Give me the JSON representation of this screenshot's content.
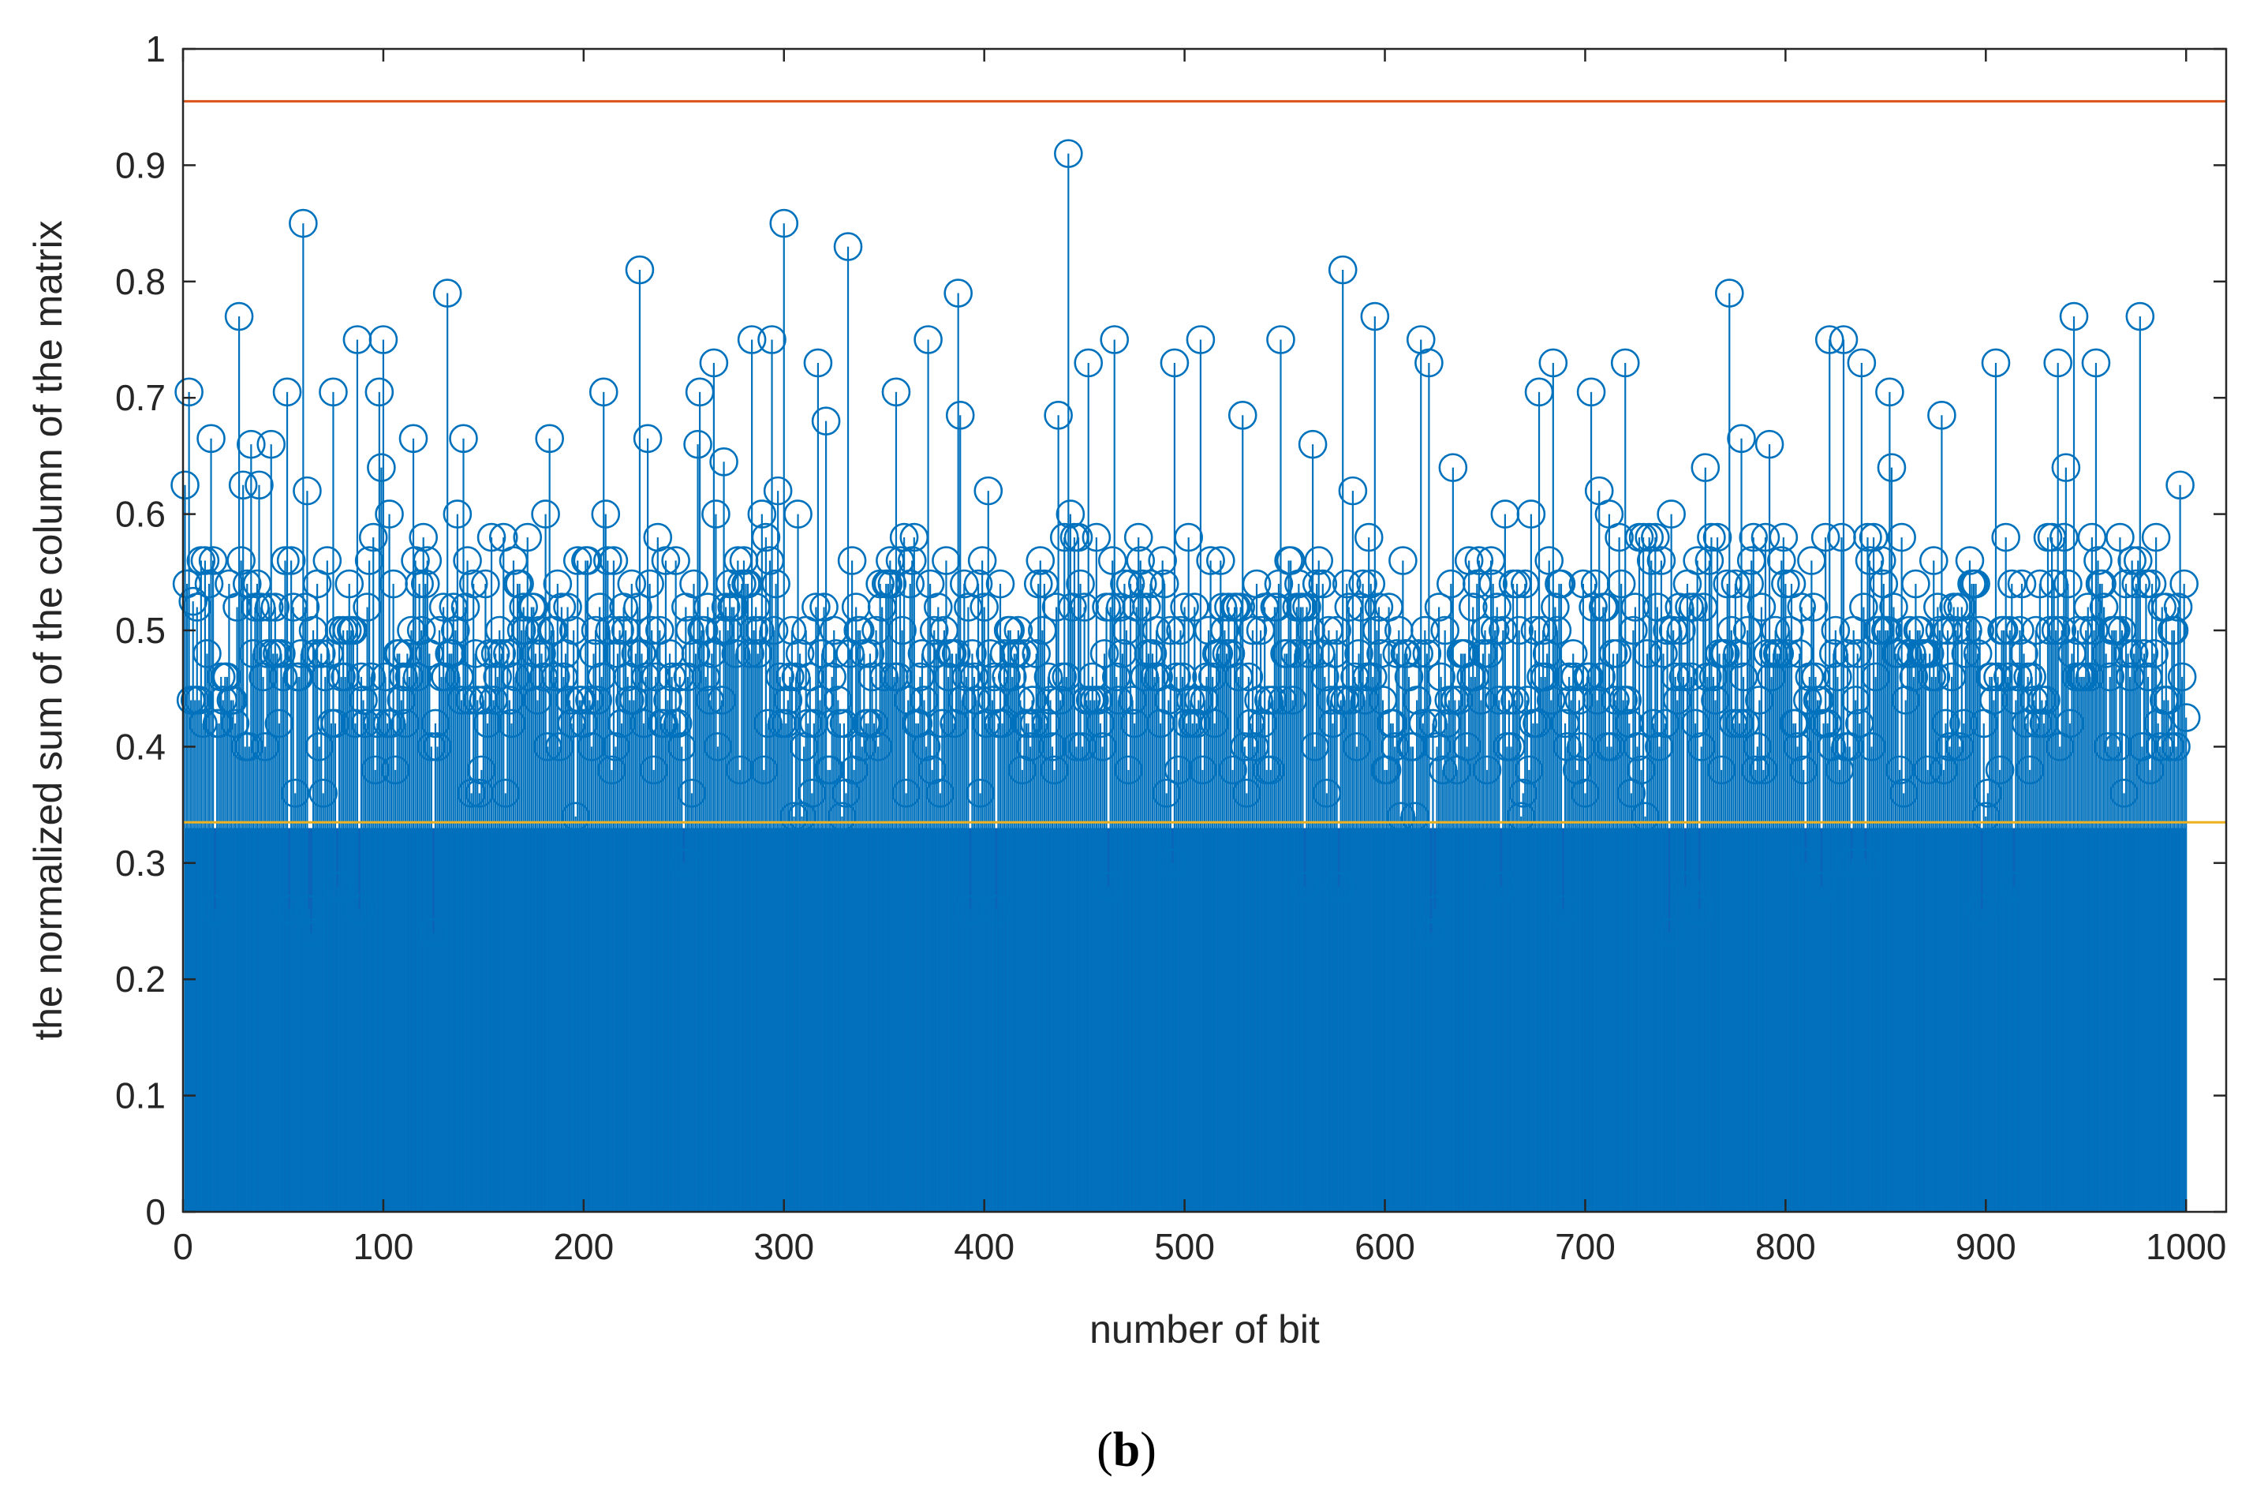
{
  "chart_data": {
    "type": "stem",
    "title": "",
    "xlabel": "number of bit",
    "ylabel": "the normalized sum of the column of the matrix",
    "panel_label": "b",
    "xlim": [
      0,
      1020
    ],
    "ylim": [
      0,
      1
    ],
    "xticks": [
      0,
      100,
      200,
      300,
      400,
      500,
      600,
      700,
      800,
      900,
      1000
    ],
    "yticks": [
      0,
      0.1,
      0.2,
      0.3,
      0.4,
      0.5,
      0.6,
      0.7,
      0.8,
      0.9,
      1
    ],
    "ytick_labels": [
      "0",
      "0.1",
      "0.2",
      "0.3",
      "0.4",
      "0.5",
      "0.6",
      "0.7",
      "0.8",
      "0.9",
      "1"
    ],
    "grid": false,
    "series": [
      {
        "kind": "stem",
        "x_range": [
          1,
          1000
        ],
        "marker": "circle",
        "color": "#0072BD",
        "notable_points": [
          {
            "x": 1,
            "y": 0.625
          },
          {
            "x": 3,
            "y": 0.705
          },
          {
            "x": 5,
            "y": 0.525
          },
          {
            "x": 14,
            "y": 0.665
          },
          {
            "x": 28,
            "y": 0.77
          },
          {
            "x": 30,
            "y": 0.625
          },
          {
            "x": 38,
            "y": 0.625
          },
          {
            "x": 52,
            "y": 0.705
          },
          {
            "x": 60,
            "y": 0.85
          },
          {
            "x": 75,
            "y": 0.705
          },
          {
            "x": 87,
            "y": 0.75
          },
          {
            "x": 98,
            "y": 0.705
          },
          {
            "x": 100,
            "y": 0.75
          },
          {
            "x": 115,
            "y": 0.665
          },
          {
            "x": 132,
            "y": 0.79
          },
          {
            "x": 140,
            "y": 0.665
          },
          {
            "x": 183,
            "y": 0.665
          },
          {
            "x": 210,
            "y": 0.705
          },
          {
            "x": 228,
            "y": 0.81
          },
          {
            "x": 232,
            "y": 0.665
          },
          {
            "x": 258,
            "y": 0.705
          },
          {
            "x": 265,
            "y": 0.73
          },
          {
            "x": 270,
            "y": 0.645
          },
          {
            "x": 284,
            "y": 0.75
          },
          {
            "x": 294,
            "y": 0.75
          },
          {
            "x": 300,
            "y": 0.85
          },
          {
            "x": 317,
            "y": 0.73
          },
          {
            "x": 332,
            "y": 0.83
          },
          {
            "x": 356,
            "y": 0.705
          },
          {
            "x": 372,
            "y": 0.75
          },
          {
            "x": 387,
            "y": 0.79
          },
          {
            "x": 388,
            "y": 0.685
          },
          {
            "x": 442,
            "y": 0.91
          },
          {
            "x": 437,
            "y": 0.685
          },
          {
            "x": 452,
            "y": 0.73
          },
          {
            "x": 465,
            "y": 0.75
          },
          {
            "x": 495,
            "y": 0.73
          },
          {
            "x": 508,
            "y": 0.75
          },
          {
            "x": 529,
            "y": 0.685
          },
          {
            "x": 548,
            "y": 0.75
          },
          {
            "x": 579,
            "y": 0.81
          },
          {
            "x": 595,
            "y": 0.77
          },
          {
            "x": 618,
            "y": 0.75
          },
          {
            "x": 622,
            "y": 0.73
          },
          {
            "x": 677,
            "y": 0.705
          },
          {
            "x": 684,
            "y": 0.73
          },
          {
            "x": 703,
            "y": 0.705
          },
          {
            "x": 720,
            "y": 0.73
          },
          {
            "x": 772,
            "y": 0.79
          },
          {
            "x": 778,
            "y": 0.665
          },
          {
            "x": 822,
            "y": 0.75
          },
          {
            "x": 829,
            "y": 0.75
          },
          {
            "x": 838,
            "y": 0.73
          },
          {
            "x": 852,
            "y": 0.705
          },
          {
            "x": 878,
            "y": 0.685
          },
          {
            "x": 905,
            "y": 0.73
          },
          {
            "x": 936,
            "y": 0.73
          },
          {
            "x": 944,
            "y": 0.77
          },
          {
            "x": 955,
            "y": 0.73
          },
          {
            "x": 977,
            "y": 0.77
          },
          {
            "x": 997,
            "y": 0.625
          },
          {
            "x": 1000,
            "y": 0.425
          }
        ]
      },
      {
        "kind": "horizontal-line",
        "y": 0.955,
        "color": "#D95319"
      },
      {
        "kind": "horizontal-line",
        "y": 0.335,
        "color": "#EDB120"
      }
    ]
  }
}
